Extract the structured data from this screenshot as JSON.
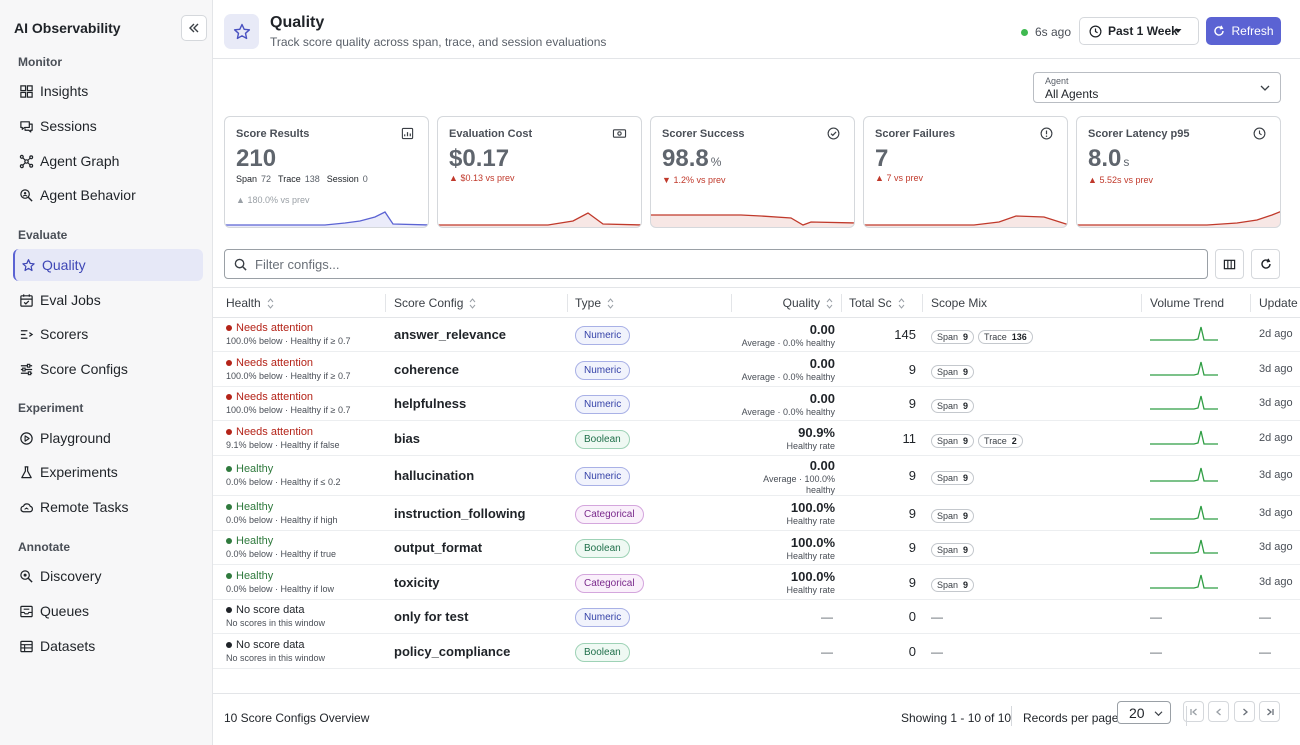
{
  "sidebar": {
    "title": "AI Observability",
    "sections": [
      {
        "label": "Monitor",
        "items": [
          "Insights",
          "Sessions",
          "Agent Graph",
          "Agent Behavior"
        ]
      },
      {
        "label": "Evaluate",
        "items": [
          "Quality",
          "Eval Jobs",
          "Scorers",
          "Score Configs"
        ]
      },
      {
        "label": "Experiment",
        "items": [
          "Playground",
          "Experiments",
          "Remote Tasks"
        ]
      },
      {
        "label": "Annotate",
        "items": [
          "Discovery",
          "Queues",
          "Datasets"
        ]
      }
    ],
    "active": "Quality"
  },
  "header": {
    "title": "Quality",
    "subtitle": "Track score quality across span, trace, and session evaluations",
    "last_update": "6s ago",
    "range": "Past 1 Week",
    "refresh_label": "Refresh"
  },
  "agent_filter": {
    "caption": "Agent",
    "value": "All Agents"
  },
  "cards": [
    {
      "title": "Score Results",
      "value": "210",
      "unit": "",
      "breakdown": [
        [
          "Span",
          "72"
        ],
        [
          "Trace",
          "138"
        ],
        [
          "Session",
          "0"
        ]
      ],
      "delta": "180.0% vs prev",
      "delta_dir": "up-muted",
      "spark_color": "#5b63d3"
    },
    {
      "title": "Evaluation Cost",
      "value": "$0.17",
      "unit": "",
      "breakdown": [],
      "delta": "$0.13 vs prev",
      "delta_dir": "up",
      "spark_color": "#c0392b"
    },
    {
      "title": "Scorer Success",
      "value": "98.8",
      "unit": "%",
      "breakdown": [],
      "delta": "1.2% vs prev",
      "delta_dir": "down",
      "spark_color": "#c0392b"
    },
    {
      "title": "Scorer Failures",
      "value": "7",
      "unit": "",
      "breakdown": [],
      "delta": "7 vs prev",
      "delta_dir": "up",
      "spark_color": "#c0392b"
    },
    {
      "title": "Scorer Latency p95",
      "value": "8.0",
      "unit": "s",
      "breakdown": [],
      "delta": "5.52s vs prev",
      "delta_dir": "up",
      "spark_color": "#c0392b"
    }
  ],
  "filter": {
    "placeholder": "Filter configs..."
  },
  "table": {
    "columns": [
      "Health",
      "Score Config",
      "Type",
      "Quality",
      "Total Sc",
      "Scope Mix",
      "Volume Trend",
      "Update"
    ],
    "rows": [
      {
        "status": "Needs attention",
        "sub": "100.0% below · Healthy if ≥ 0.7",
        "config": "answer_relevance",
        "type": "Numeric",
        "q": "0.00",
        "qsub": [
          "Average · 0.0% healthy"
        ],
        "total": "145",
        "scope": [
          [
            "Span",
            "9"
          ],
          [
            "Trace",
            "136"
          ]
        ],
        "trend": true,
        "updated": "2d ago"
      },
      {
        "status": "Needs attention",
        "sub": "100.0% below · Healthy if ≥ 0.7",
        "config": "coherence",
        "type": "Numeric",
        "q": "0.00",
        "qsub": [
          "Average · 0.0% healthy"
        ],
        "total": "9",
        "scope": [
          [
            "Span",
            "9"
          ]
        ],
        "trend": true,
        "updated": "3d ago"
      },
      {
        "status": "Needs attention",
        "sub": "100.0% below · Healthy if ≥ 0.7",
        "config": "helpfulness",
        "type": "Numeric",
        "q": "0.00",
        "qsub": [
          "Average · 0.0% healthy"
        ],
        "total": "9",
        "scope": [
          [
            "Span",
            "9"
          ]
        ],
        "trend": true,
        "updated": "3d ago"
      },
      {
        "status": "Needs attention",
        "sub": "9.1% below · Healthy if false",
        "config": "bias",
        "type": "Boolean",
        "q": "90.9%",
        "qsub": [
          "Healthy rate"
        ],
        "total": "11",
        "scope": [
          [
            "Span",
            "9"
          ],
          [
            "Trace",
            "2"
          ]
        ],
        "trend": true,
        "updated": "2d ago"
      },
      {
        "status": "Healthy",
        "sub": "0.0% below · Healthy if ≤ 0.2",
        "config": "hallucination",
        "type": "Numeric",
        "q": "0.00",
        "qsub": [
          "Average · 100.0%",
          "healthy"
        ],
        "total": "9",
        "scope": [
          [
            "Span",
            "9"
          ]
        ],
        "trend": true,
        "updated": "3d ago"
      },
      {
        "status": "Healthy",
        "sub": "0.0% below · Healthy if high",
        "config": "instruction_following",
        "type": "Categorical",
        "q": "100.0%",
        "qsub": [
          "Healthy rate"
        ],
        "total": "9",
        "scope": [
          [
            "Span",
            "9"
          ]
        ],
        "trend": true,
        "updated": "3d ago"
      },
      {
        "status": "Healthy",
        "sub": "0.0% below · Healthy if true",
        "config": "output_format",
        "type": "Boolean",
        "q": "100.0%",
        "qsub": [
          "Healthy rate"
        ],
        "total": "9",
        "scope": [
          [
            "Span",
            "9"
          ]
        ],
        "trend": true,
        "updated": "3d ago"
      },
      {
        "status": "Healthy",
        "sub": "0.0% below · Healthy if low",
        "config": "toxicity",
        "type": "Categorical",
        "q": "100.0%",
        "qsub": [
          "Healthy rate"
        ],
        "total": "9",
        "scope": [
          [
            "Span",
            "9"
          ]
        ],
        "trend": true,
        "updated": "3d ago"
      },
      {
        "status": "No score data",
        "sub": "No scores in this window",
        "config": "only for test",
        "type": "Numeric",
        "q": "—",
        "qsub": [],
        "total": "0",
        "scope": [],
        "trend": false,
        "updated": "—"
      },
      {
        "status": "No score data",
        "sub": "No scores in this window",
        "config": "policy_compliance",
        "type": "Boolean",
        "q": "—",
        "qsub": [],
        "total": "0",
        "scope": [],
        "trend": false,
        "updated": "—"
      }
    ]
  },
  "status_colors": {
    "Needs attention": "#b42318",
    "Healthy": "#2f7a3d",
    "No score data": "#1f2328"
  },
  "footer": {
    "summary": "10 Score Configs Overview",
    "showing": "Showing 1 - 10 of 10",
    "rpp_label": "Records per page",
    "rpp_value": "20"
  }
}
